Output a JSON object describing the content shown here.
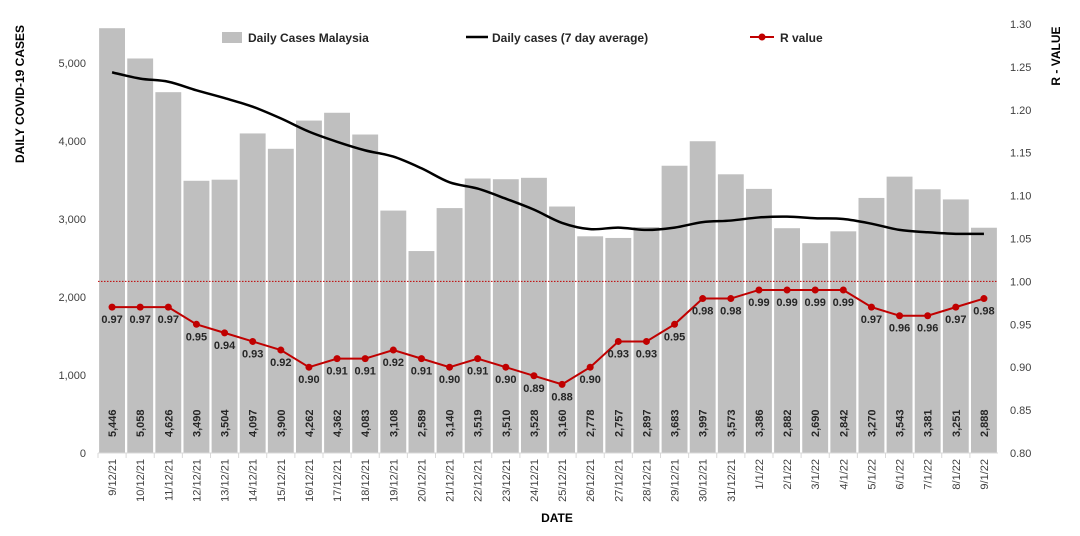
{
  "chart_data": {
    "type": "bar+line",
    "xlabel": "DATE",
    "ylabel_left": "DAILY COVID-19 CASES",
    "ylabel_right": "R - VALUE",
    "categories": [
      "9/12/21",
      "10/12/21",
      "11/12/21",
      "12/12/21",
      "13/12/21",
      "14/12/21",
      "15/12/21",
      "16/12/21",
      "17/12/21",
      "18/12/21",
      "19/12/21",
      "20/12/21",
      "21/12/21",
      "22/12/21",
      "23/12/21",
      "24/12/21",
      "25/12/21",
      "26/12/21",
      "27/12/21",
      "28/12/21",
      "29/12/21",
      "30/12/21",
      "31/12/21",
      "1/1/22",
      "2/1/22",
      "3/1/22",
      "4/1/22",
      "5/1/22",
      "6/1/22",
      "7/1/22",
      "8/1/22",
      "9/1/22"
    ],
    "series": [
      {
        "name": "Daily Cases Malaysia",
        "type": "bar",
        "axis": "left",
        "color": "#bfbfbf",
        "values": [
          5446,
          5058,
          4626,
          3490,
          3504,
          4097,
          3900,
          4262,
          4362,
          4083,
          3108,
          2589,
          3140,
          3519,
          3510,
          3528,
          3160,
          2778,
          2757,
          2897,
          3683,
          3997,
          3573,
          3386,
          2882,
          2690,
          2842,
          3270,
          3543,
          3381,
          3251,
          2888
        ],
        "labels": [
          "5,446",
          "5,058",
          "4,626",
          "3,490",
          "3,504",
          "4,097",
          "3,900",
          "4,262",
          "4,362",
          "4,083",
          "3,108",
          "2,589",
          "3,140",
          "3,519",
          "3,510",
          "3,528",
          "3,160",
          "2,778",
          "2,757",
          "2,897",
          "3,683",
          "3,997",
          "3,573",
          "3,386",
          "2,882",
          "2,690",
          "2,842",
          "3,270",
          "3,543",
          "3,381",
          "3,251",
          "2,888"
        ]
      },
      {
        "name": "Daily cases (7 day average)",
        "type": "line",
        "axis": "left",
        "color": "#000000",
        "values": [
          4880,
          4800,
          4760,
          4650,
          4550,
          4440,
          4290,
          4120,
          3990,
          3880,
          3800,
          3650,
          3470,
          3390,
          3260,
          3120,
          2950,
          2870,
          2890,
          2860,
          2890,
          2960,
          2980,
          3020,
          3030,
          3010,
          3000,
          2940,
          2860,
          2830,
          2810,
          2810
        ]
      },
      {
        "name": "R value",
        "type": "line",
        "axis": "right",
        "color": "#c00000",
        "values": [
          0.97,
          0.97,
          0.97,
          0.95,
          0.94,
          0.93,
          0.92,
          0.9,
          0.91,
          0.91,
          0.92,
          0.91,
          0.9,
          0.91,
          0.9,
          0.89,
          0.88,
          0.9,
          0.93,
          0.93,
          0.95,
          0.98,
          0.98,
          0.99,
          0.99,
          0.99,
          0.99,
          0.97,
          0.96,
          0.96,
          0.97,
          0.98
        ],
        "labels": [
          "0.97",
          "0.97",
          "0.97",
          "0.95",
          "0.94",
          "0.93",
          "0.92",
          "0.90",
          "0.91",
          "0.91",
          "0.92",
          "0.91",
          "0.90",
          "0.91",
          "0.90",
          "0.89",
          "0.88",
          "0.90",
          "0.93",
          "0.93",
          "0.95",
          "0.98",
          "0.98",
          "0.99",
          "0.99",
          "0.99",
          "0.99",
          "0.97",
          "0.96",
          "0.96",
          "0.97",
          "0.98"
        ]
      }
    ],
    "reference_line": {
      "axis": "right",
      "value": 1.0,
      "color": "#c00000",
      "style": "dotted"
    },
    "ylim_left": [
      0,
      5500
    ],
    "yticks_left": [
      "0",
      "1,000",
      "2,000",
      "3,000",
      "4,000",
      "5,000"
    ],
    "yticks_left_values": [
      0,
      1000,
      2000,
      3000,
      4000,
      5000
    ],
    "ylim_right": [
      0.8,
      1.3
    ],
    "yticks_right": [
      "0.80",
      "0.85",
      "0.90",
      "0.95",
      "1.00",
      "1.05",
      "1.10",
      "1.15",
      "1.20",
      "1.25",
      "1.30"
    ],
    "yticks_right_values": [
      0.8,
      0.85,
      0.9,
      0.95,
      1.0,
      1.05,
      1.1,
      1.15,
      1.2,
      1.25,
      1.3
    ],
    "legend_placement": "top",
    "grid": false
  }
}
